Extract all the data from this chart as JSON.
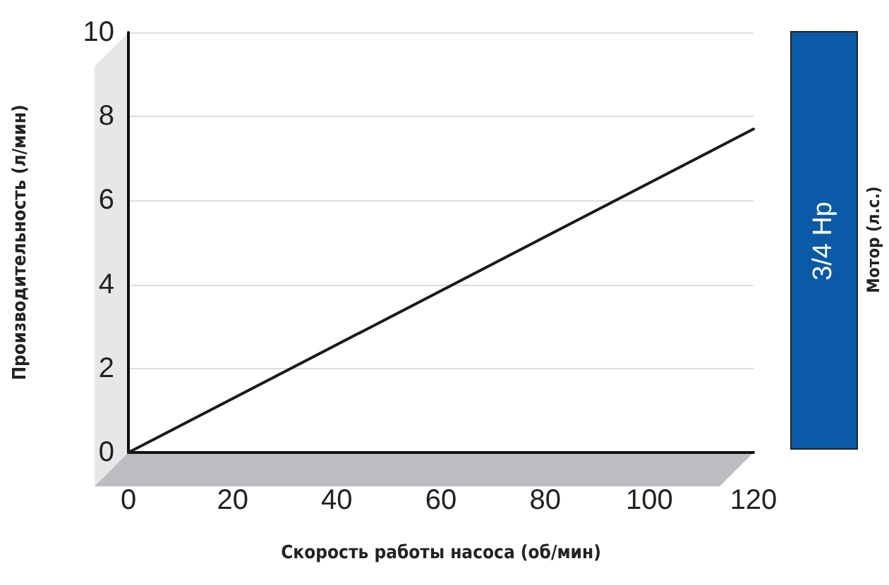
{
  "chart_data": {
    "type": "line",
    "xlabel": "Скорость работы насоса (об/мин)",
    "ylabel": "Производительность (л/мин)",
    "x": [
      0,
      120
    ],
    "series": [
      {
        "color": "#1a1a1a",
        "values": [
          0,
          7.7
        ]
      }
    ],
    "xlim": [
      0,
      120
    ],
    "xticks": [
      0,
      20,
      40,
      60,
      80,
      100,
      120
    ],
    "ylim": [
      0,
      10
    ],
    "yticks": [
      0,
      2,
      4,
      6,
      8,
      10
    ],
    "grid": "y",
    "marker": "none",
    "line_style": "solid",
    "annotations": [
      "3/4 Hp",
      "Мотор (л.с.)"
    ]
  }
}
